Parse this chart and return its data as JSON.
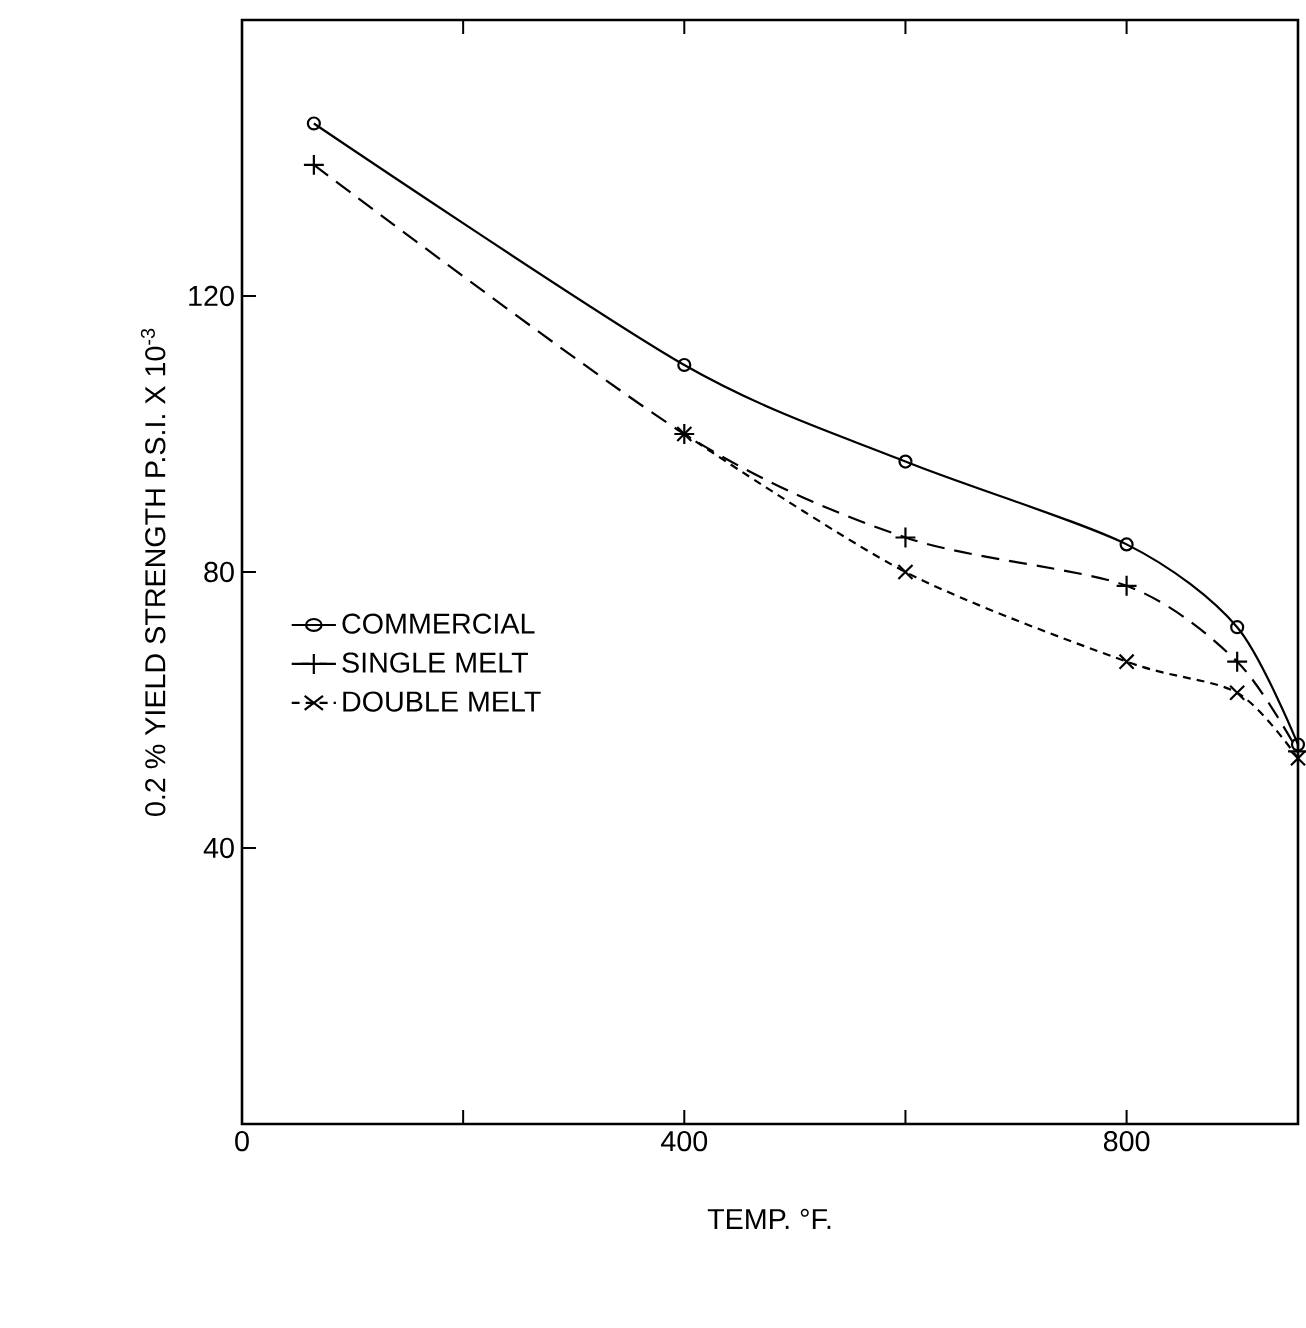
{
  "chart_data": {
    "type": "line",
    "xlabel": "TEMP. °F.",
    "ylabel": "0.2 % YIELD  STRENGTH P.S.I. X 10$^{-3}$",
    "xlim": [
      0,
      955
    ],
    "ylim": [
      0,
      160
    ],
    "xticks": [
      0,
      {
        "value": 200,
        "label": null
      },
      400,
      {
        "value": 600,
        "label": null
      },
      800
    ],
    "yticks": [
      40,
      80,
      120
    ],
    "grid": false,
    "legend": "left",
    "series": [
      {
        "name": "COMMERCIAL",
        "color": "#000000",
        "marker": "circle",
        "line_style": "solid",
        "x": [
          65,
          400,
          600,
          800,
          900,
          955
        ],
        "values": [
          145,
          110,
          96,
          84,
          72,
          55
        ]
      },
      {
        "name": "SINGLE  MELT",
        "color": "#000000",
        "marker": "plus",
        "line_style": "dashed",
        "x": [
          65,
          400,
          600,
          800,
          900,
          955
        ],
        "values": [
          139,
          100,
          85,
          78,
          67,
          54
        ]
      },
      {
        "name": "DOUBLE  MELT",
        "color": "#000000",
        "marker": "cross",
        "line_style": "dotted",
        "x": [
          400,
          600,
          800,
          900,
          955
        ],
        "values": [
          100,
          80,
          67,
          62.5,
          53
        ]
      }
    ]
  }
}
